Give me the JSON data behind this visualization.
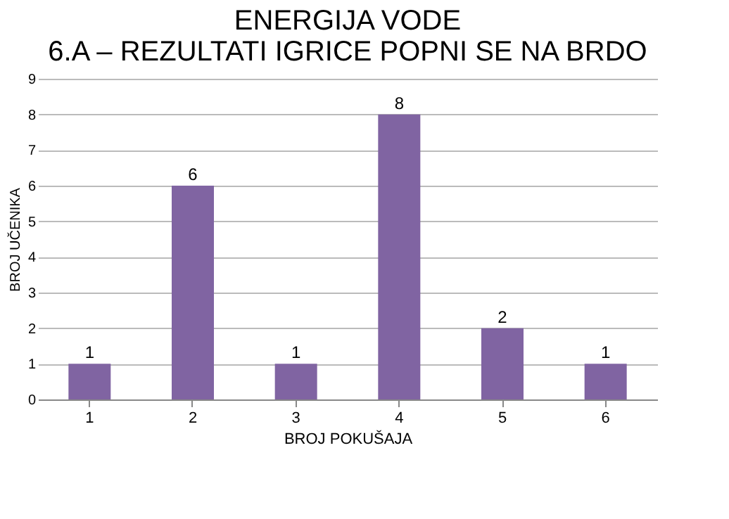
{
  "chart_data": {
    "type": "bar",
    "title": "ENERGIJA VODE\n6.A – REZULTATI IGRICE POPNI SE NA BRDO",
    "xlabel": "BROJ POKUŠAJA",
    "ylabel": "BROJ UČENIKA",
    "categories": [
      "1",
      "2",
      "3",
      "4",
      "5",
      "6"
    ],
    "values": [
      1,
      6,
      1,
      8,
      2,
      1
    ],
    "color": "#8064a2",
    "ylim": [
      0,
      9
    ],
    "yticks": [
      0,
      1,
      2,
      3,
      4,
      5,
      6,
      7,
      8,
      9
    ],
    "grid": "y",
    "data_labels": true
  }
}
